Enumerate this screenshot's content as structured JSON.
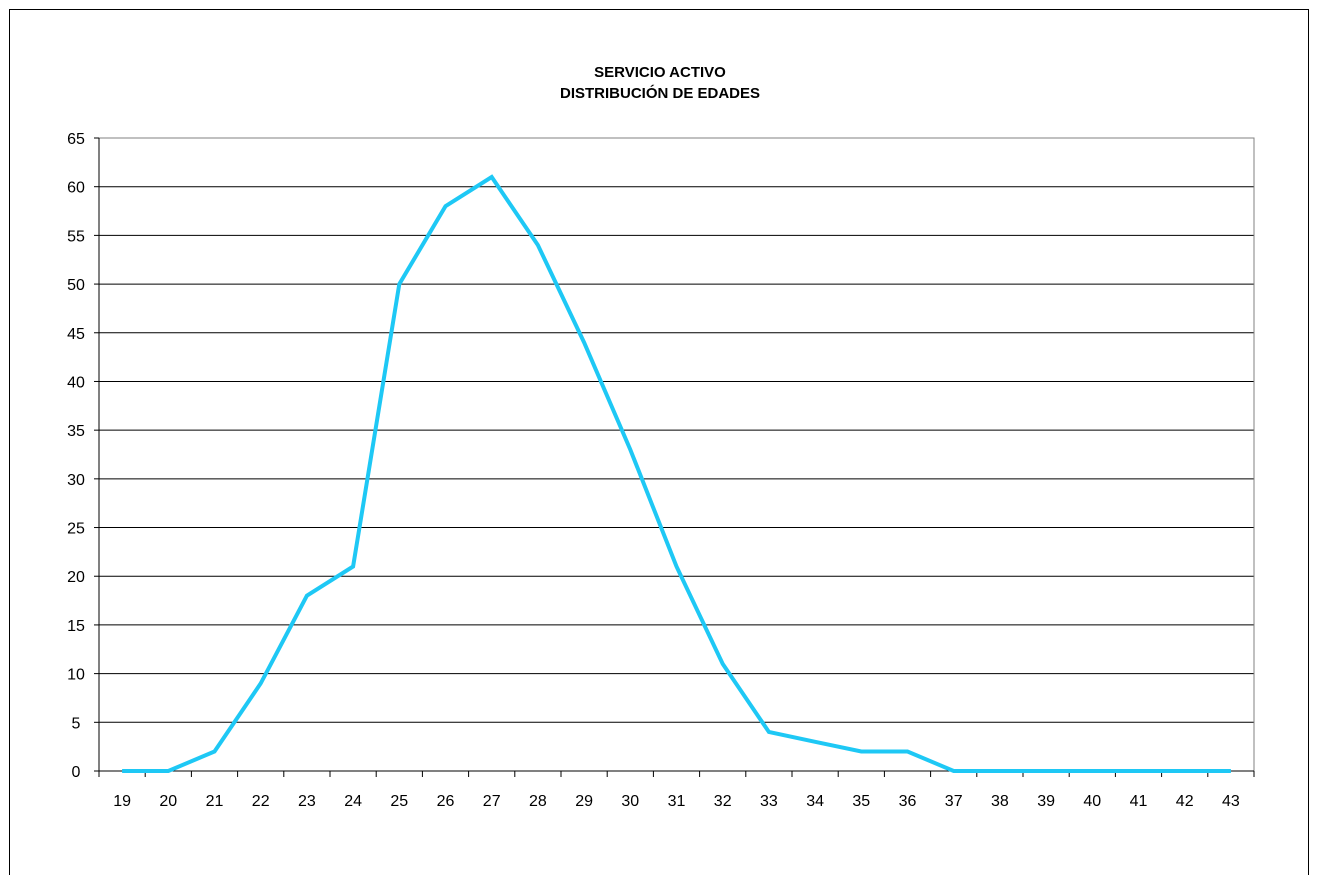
{
  "chart_data": {
    "type": "line",
    "title": "SERVICIO ACTIVO",
    "subtitle": "DISTRIBUCIÓN DE EDADES",
    "xlabel": "",
    "ylabel": "",
    "categories": [
      "19",
      "20",
      "21",
      "22",
      "23",
      "24",
      "25",
      "26",
      "27",
      "28",
      "29",
      "30",
      "31",
      "32",
      "33",
      "34",
      "35",
      "36",
      "37",
      "38",
      "39",
      "40",
      "41",
      "42",
      "43"
    ],
    "values": [
      0,
      0,
      2,
      9,
      18,
      21,
      50,
      58,
      61,
      54,
      44,
      33,
      21,
      11,
      4,
      3,
      2,
      2,
      0,
      0,
      0,
      0,
      0,
      0,
      0
    ],
    "ylim": [
      0,
      65
    ],
    "yticks": [
      "0",
      "5",
      "10",
      "15",
      "20",
      "25",
      "30",
      "35",
      "40",
      "45",
      "50",
      "55",
      "60",
      "65"
    ],
    "grid": true,
    "legend": "none",
    "line_color": "#1ec8f5"
  }
}
